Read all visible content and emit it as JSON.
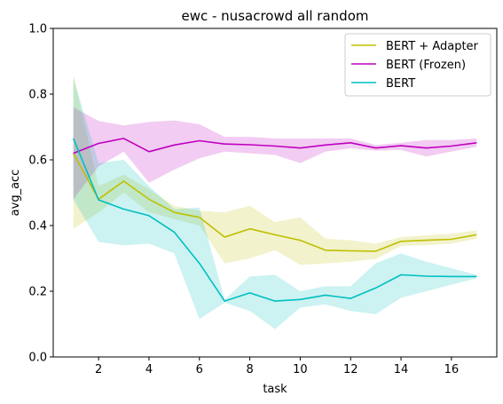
{
  "chart_data": {
    "type": "line",
    "title": "ewc - nusacrowd all random",
    "xlabel": "task",
    "ylabel": "avg_acc",
    "xlim": [
      0.2,
      17.8
    ],
    "ylim": [
      0.0,
      1.0
    ],
    "xticks": [
      2,
      4,
      6,
      8,
      10,
      12,
      14,
      16
    ],
    "yticks": [
      0.0,
      0.2,
      0.4,
      0.6,
      0.8,
      1.0
    ],
    "ytick_labels": [
      "0.0",
      "0.2",
      "0.4",
      "0.6",
      "0.8",
      "1.0"
    ],
    "grid": false,
    "legend_position": "top-right",
    "x": [
      1,
      2,
      3,
      4,
      5,
      6,
      7,
      8,
      9,
      10,
      11,
      12,
      13,
      14,
      15,
      16,
      17
    ],
    "series": [
      {
        "name": "BERT + Adapter",
        "color": "#bfbf00",
        "values": [
          0.62,
          0.48,
          0.535,
          0.48,
          0.44,
          0.425,
          0.365,
          0.39,
          0.372,
          0.355,
          0.325,
          0.323,
          0.322,
          0.352,
          0.355,
          0.358,
          0.372
        ],
        "upper": [
          0.86,
          0.52,
          0.555,
          0.51,
          0.46,
          0.445,
          0.44,
          0.46,
          0.41,
          0.425,
          0.36,
          0.355,
          0.345,
          0.365,
          0.37,
          0.375,
          0.385
        ],
        "lower": [
          0.39,
          0.44,
          0.5,
          0.44,
          0.42,
          0.4,
          0.285,
          0.3,
          0.325,
          0.28,
          0.285,
          0.29,
          0.298,
          0.338,
          0.34,
          0.345,
          0.36
        ]
      },
      {
        "name": "BERT (Frozen)",
        "color": "#bf00bf",
        "values": [
          0.62,
          0.65,
          0.665,
          0.625,
          0.645,
          0.658,
          0.648,
          0.646,
          0.642,
          0.636,
          0.645,
          0.652,
          0.636,
          0.643,
          0.636,
          0.642,
          0.652
        ],
        "upper": [
          0.76,
          0.718,
          0.705,
          0.715,
          0.72,
          0.708,
          0.67,
          0.67,
          0.665,
          0.665,
          0.665,
          0.665,
          0.645,
          0.652,
          0.66,
          0.66,
          0.665
        ],
        "lower": [
          0.48,
          0.58,
          0.625,
          0.53,
          0.57,
          0.605,
          0.625,
          0.62,
          0.615,
          0.59,
          0.625,
          0.635,
          0.628,
          0.63,
          0.61,
          0.625,
          0.64
        ]
      },
      {
        "name": "BERT",
        "color": "#00bfbf",
        "values": [
          0.665,
          0.478,
          0.45,
          0.43,
          0.38,
          0.285,
          0.17,
          0.195,
          0.17,
          0.175,
          0.188,
          0.178,
          0.21,
          0.25,
          0.246,
          0.245,
          0.245
        ],
        "upper": [
          0.85,
          0.59,
          0.6,
          0.52,
          0.45,
          0.455,
          0.175,
          0.245,
          0.25,
          0.2,
          0.215,
          0.215,
          0.285,
          0.315,
          0.29,
          0.27,
          0.25
        ],
        "lower": [
          0.48,
          0.35,
          0.34,
          0.345,
          0.315,
          0.115,
          0.165,
          0.14,
          0.085,
          0.15,
          0.16,
          0.14,
          0.13,
          0.18,
          0.2,
          0.22,
          0.24
        ]
      }
    ]
  }
}
